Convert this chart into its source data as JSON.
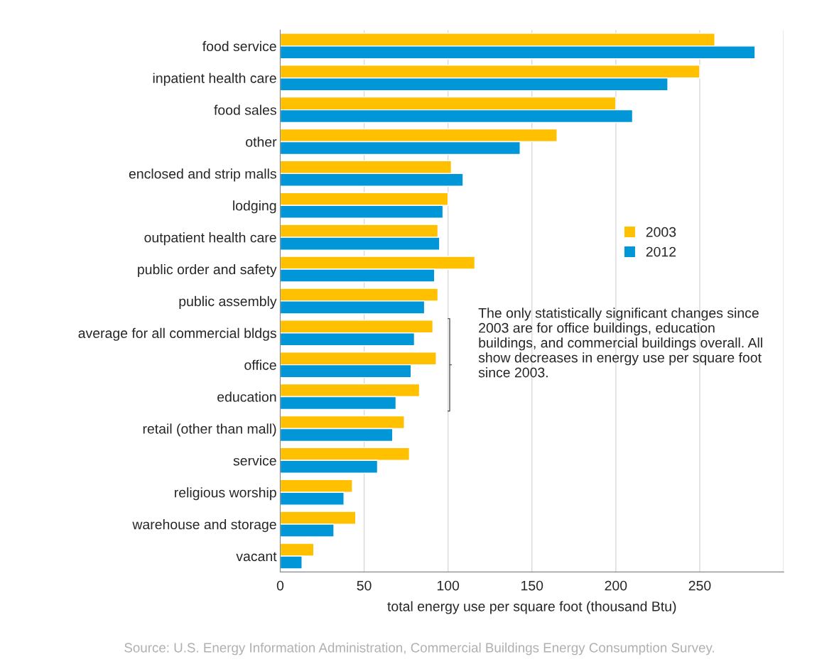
{
  "chart_data": {
    "type": "bar",
    "orientation": "horizontal",
    "categories": [
      "food service",
      "inpatient health care",
      "food sales",
      "other",
      "enclosed and strip malls",
      "lodging",
      "outpatient health care",
      "public order and safety",
      "public assembly",
      "average for all commercial bldgs",
      "office",
      "education",
      "retail (other than mall)",
      "service",
      "religious worship",
      "warehouse and storage",
      "vacant"
    ],
    "series": [
      {
        "name": "2003",
        "color": "#ffc000",
        "values": [
          259,
          250,
          200,
          165,
          102,
          100,
          94,
          116,
          94,
          91,
          93,
          83,
          74,
          77,
          43,
          45,
          20
        ]
      },
      {
        "name": "2012",
        "color": "#0096d7",
        "values": [
          283,
          231,
          210,
          143,
          109,
          97,
          95,
          92,
          86,
          80,
          78,
          69,
          67,
          58,
          38,
          32,
          13
        ]
      }
    ],
    "xlabel": "total energy use per square foot (thousand Btu)",
    "xlim": [
      0,
      300
    ],
    "xticks": [
      0,
      50,
      100,
      150,
      200,
      250,
      {
        "value": 300,
        "label": null
      }
    ],
    "grid": "x",
    "legend": "right",
    "annotations": [
      "The only statistically significant changes since 2003 are for office buildings, education buildings, and commercial buildings overall. All show decreases in energy use per square foot since 2003.",
      "Source: U.S. Energy Information Administration, Commercial Buildings Energy Consumption Survey."
    ]
  }
}
